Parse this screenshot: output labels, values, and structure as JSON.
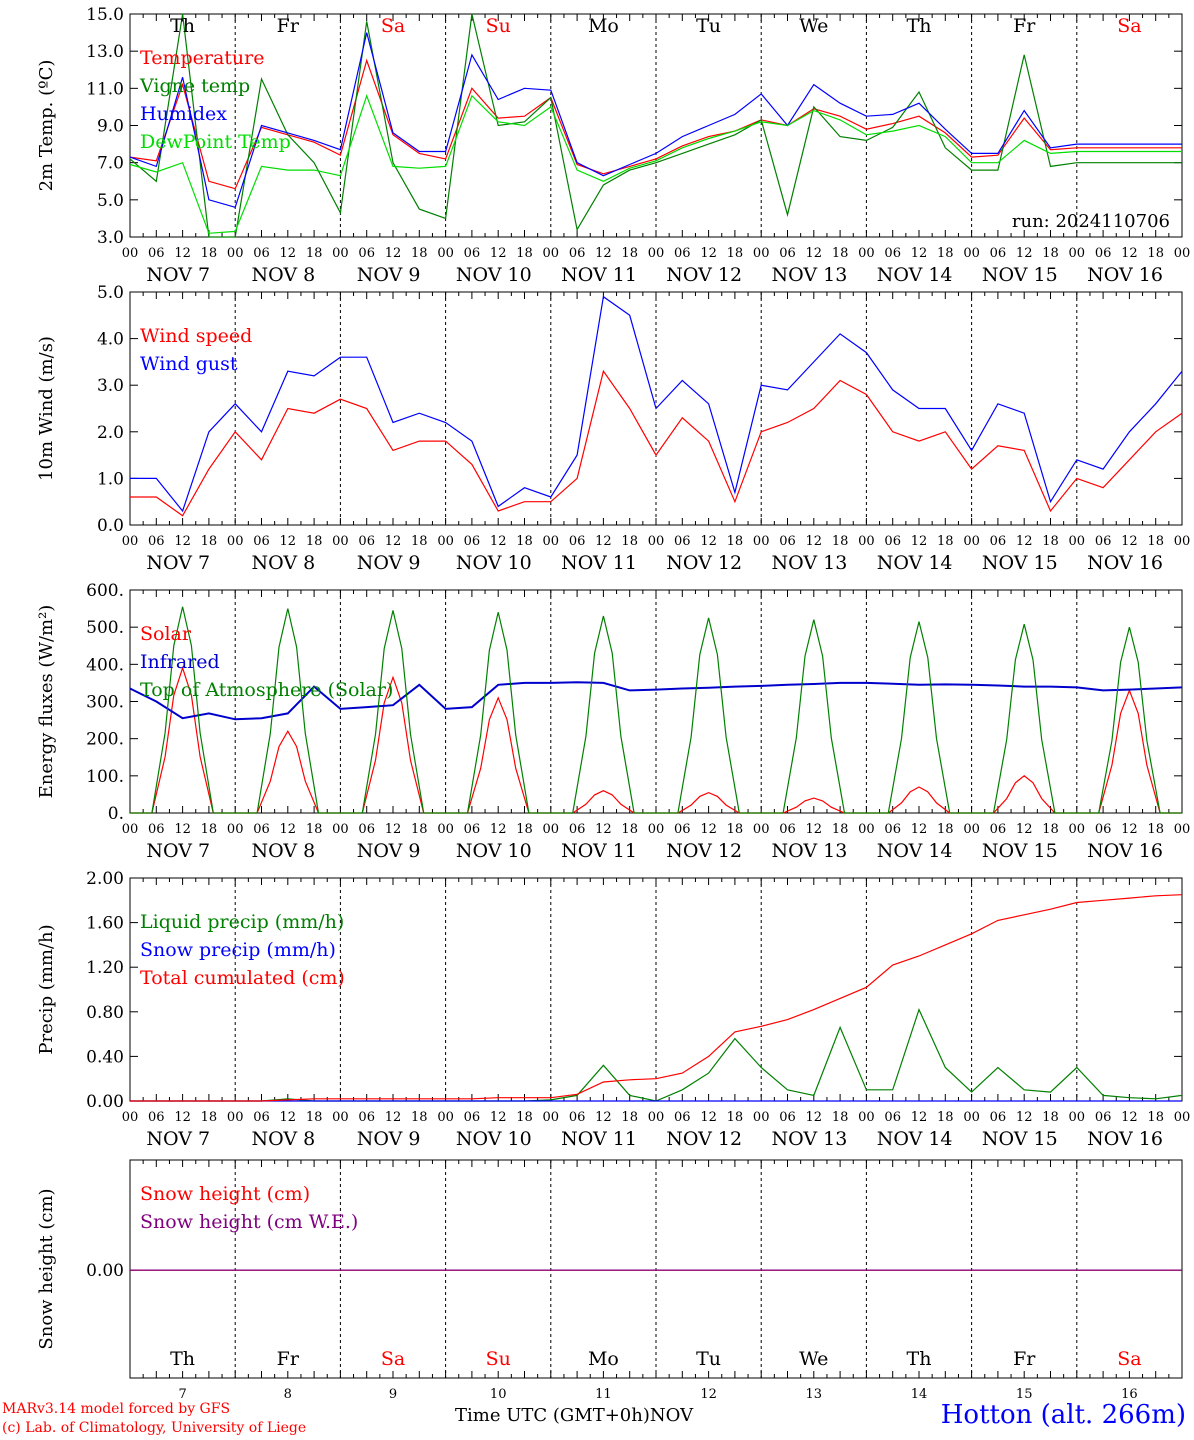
{
  "chart_data": [
    {
      "type": "line",
      "ylabel": "2m Temp. (ºC)",
      "ylim": [
        3.0,
        15.0
      ],
      "yticks": [
        "3.0",
        "5.0",
        "7.0",
        "9.0",
        "11.0",
        "13.0",
        "15.0"
      ],
      "weekday_labels": [
        {
          "text": "Th",
          "weekend": false
        },
        {
          "text": "Fr",
          "weekend": false
        },
        {
          "text": "Sa",
          "weekend": true
        },
        {
          "text": "Su",
          "weekend": true
        },
        {
          "text": "Mo",
          "weekend": false
        },
        {
          "text": "Tu",
          "weekend": false
        },
        {
          "text": "We",
          "weekend": false
        },
        {
          "text": "Th",
          "weekend": false
        },
        {
          "text": "Fr",
          "weekend": false
        },
        {
          "text": "Sa",
          "weekend": true
        }
      ],
      "legend": [
        "Temperature",
        "Vigne temp",
        "Humidex",
        "DewPoint Temp"
      ],
      "annotation": "run: 2024110706",
      "x_hours": [
        0,
        6,
        12,
        18,
        24,
        30,
        36,
        42,
        48,
        54,
        60,
        66,
        72,
        78,
        84,
        90,
        96,
        102,
        108,
        114,
        120,
        126,
        132,
        138,
        144,
        150,
        156,
        162,
        168,
        174,
        180,
        186,
        192,
        198,
        204,
        210,
        216,
        222,
        228,
        234,
        240
      ],
      "series": [
        {
          "name": "Temperature",
          "color": "#ff0000",
          "values": [
            7.3,
            7.1,
            11.2,
            6.0,
            5.6,
            8.9,
            8.5,
            8.1,
            7.4,
            12.5,
            8.5,
            7.5,
            7.2,
            11.0,
            9.4,
            9.5,
            10.5,
            6.9,
            6.4,
            6.8,
            7.2,
            7.9,
            8.4,
            8.7,
            9.3,
            9.0,
            9.9,
            9.5,
            8.8,
            9.1,
            9.5,
            8.6,
            7.3,
            7.4,
            9.4,
            7.7,
            7.8,
            7.8,
            7.8,
            7.8,
            7.8
          ]
        },
        {
          "name": "Vigne temp",
          "color": "#008000",
          "values": [
            7.2,
            6.0,
            15.0,
            3.0,
            3.0,
            11.5,
            8.5,
            7.0,
            4.3,
            14.6,
            7.0,
            4.5,
            4.0,
            15.0,
            9.0,
            9.2,
            10.5,
            3.4,
            5.8,
            6.6,
            7.0,
            7.5,
            8.0,
            8.5,
            9.3,
            4.2,
            10.0,
            8.4,
            8.2,
            8.9,
            10.8,
            7.8,
            6.6,
            6.6,
            12.8,
            6.8,
            7.0,
            7.0,
            7.0,
            7.0,
            7.0
          ]
        },
        {
          "name": "Humidex",
          "color": "#0000ff",
          "values": [
            7.3,
            6.8,
            11.6,
            5.0,
            4.6,
            9.0,
            8.6,
            8.2,
            7.7,
            14.0,
            8.6,
            7.6,
            7.6,
            12.8,
            10.4,
            11.0,
            10.9,
            7.0,
            6.3,
            6.9,
            7.5,
            8.4,
            9.0,
            9.6,
            10.7,
            9.0,
            11.2,
            10.2,
            9.5,
            9.6,
            10.2,
            8.8,
            7.5,
            7.5,
            9.8,
            7.8,
            8.0,
            8.0,
            8.0,
            8.0,
            8.0
          ]
        },
        {
          "name": "DewPoint Temp",
          "color": "#00dd00",
          "values": [
            6.9,
            6.5,
            7.0,
            3.2,
            3.3,
            6.8,
            6.6,
            6.6,
            6.3,
            10.6,
            6.8,
            6.7,
            6.8,
            10.6,
            9.2,
            9.0,
            10.0,
            6.6,
            6.0,
            6.7,
            7.1,
            7.8,
            8.3,
            8.7,
            9.2,
            9.0,
            9.8,
            9.3,
            8.5,
            8.7,
            9.0,
            8.4,
            7.0,
            7.0,
            8.2,
            7.5,
            7.6,
            7.6,
            7.6,
            7.6,
            7.6
          ]
        }
      ]
    },
    {
      "type": "line",
      "ylabel": "10m Wind (m/s)",
      "ylim": [
        0.0,
        5.0
      ],
      "yticks": [
        "0.0",
        "1.0",
        "2.0",
        "3.0",
        "4.0",
        "5.0"
      ],
      "legend": [
        "Wind speed",
        "Wind gust"
      ],
      "x_hours": [
        0,
        6,
        12,
        18,
        24,
        30,
        36,
        42,
        48,
        54,
        60,
        66,
        72,
        78,
        84,
        90,
        96,
        102,
        108,
        114,
        120,
        126,
        132,
        138,
        144,
        150,
        156,
        162,
        168,
        174,
        180,
        186,
        192,
        198,
        204,
        210,
        216,
        222,
        228,
        234,
        240
      ],
      "series": [
        {
          "name": "Wind speed",
          "color": "#ff0000",
          "values": [
            0.6,
            0.6,
            0.2,
            1.2,
            2.0,
            1.4,
            2.5,
            2.4,
            2.7,
            2.5,
            1.6,
            1.8,
            1.8,
            1.3,
            0.3,
            0.5,
            0.5,
            1.0,
            3.3,
            2.5,
            1.5,
            2.3,
            1.8,
            0.5,
            2.0,
            2.2,
            2.5,
            3.1,
            2.8,
            2.0,
            1.8,
            2.0,
            1.2,
            1.7,
            1.6,
            0.3,
            1.0,
            0.8,
            1.4,
            2.0,
            2.4
          ]
        },
        {
          "name": "Wind gust",
          "color": "#0000ff",
          "values": [
            1.0,
            1.0,
            0.3,
            2.0,
            2.6,
            2.0,
            3.3,
            3.2,
            3.6,
            3.6,
            2.2,
            2.4,
            2.2,
            1.8,
            0.4,
            0.8,
            0.6,
            1.5,
            4.9,
            4.5,
            2.5,
            3.1,
            2.6,
            0.7,
            3.0,
            2.9,
            3.5,
            4.1,
            3.7,
            2.9,
            2.5,
            2.5,
            1.6,
            2.6,
            2.4,
            0.5,
            1.4,
            1.2,
            2.0,
            2.6,
            3.3
          ]
        }
      ]
    },
    {
      "type": "line",
      "ylabel": "Energy fluxes (W/m²)",
      "ylim": [
        0,
        600
      ],
      "yticks": [
        "0.",
        "100.",
        "200.",
        "300.",
        "400.",
        "500.",
        "600."
      ],
      "legend": [
        "Solar",
        "Infrared",
        "Top of Atmosphere (Solar)"
      ],
      "series": [
        {
          "name": "Solar",
          "color": "#ff0000",
          "peaks": [
            [
              12,
              390
            ],
            [
              36,
              220
            ],
            [
              60,
              365
            ],
            [
              84,
              310
            ],
            [
              108,
              60
            ],
            [
              132,
              55
            ],
            [
              156,
              40
            ],
            [
              180,
              70
            ],
            [
              204,
              100
            ],
            [
              228,
              330
            ]
          ]
        },
        {
          "name": "Infrared",
          "color": "#0000cc",
          "x_hours": [
            0,
            6,
            12,
            18,
            24,
            30,
            36,
            42,
            48,
            54,
            60,
            66,
            72,
            78,
            84,
            90,
            96,
            102,
            108,
            114,
            120,
            126,
            132,
            138,
            144,
            150,
            156,
            162,
            168,
            174,
            180,
            186,
            192,
            198,
            204,
            210,
            216,
            222,
            228,
            234,
            240
          ],
          "values": [
            335,
            300,
            255,
            268,
            252,
            255,
            268,
            340,
            280,
            285,
            290,
            345,
            280,
            285,
            345,
            350,
            350,
            352,
            350,
            330,
            332,
            335,
            337,
            340,
            342,
            345,
            347,
            350,
            350,
            348,
            345,
            346,
            345,
            343,
            340,
            340,
            338,
            330,
            332,
            335,
            338
          ]
        },
        {
          "name": "Top of Atmosphere (Solar)",
          "color": "#008000",
          "peaks": [
            [
              12,
              555
            ],
            [
              36,
              550
            ],
            [
              60,
              545
            ],
            [
              84,
              540
            ],
            [
              108,
              530
            ],
            [
              132,
              525
            ],
            [
              156,
              520
            ],
            [
              180,
              515
            ],
            [
              204,
              508
            ],
            [
              228,
              500
            ]
          ]
        }
      ]
    },
    {
      "type": "line",
      "ylabel": "Precip (mm/h)",
      "ylim": [
        0.0,
        2.0
      ],
      "yticks": [
        "0.00",
        "0.40",
        "0.80",
        "1.20",
        "1.60",
        "2.00"
      ],
      "legend": [
        "Liquid precip (mm/h)",
        "Snow precip (mm/h)",
        "Total cumulated (cm)"
      ],
      "series": [
        {
          "name": "Liquid precip (mm/h)",
          "color": "#008000",
          "x_hours": [
            0,
            6,
            12,
            18,
            24,
            30,
            36,
            42,
            48,
            54,
            60,
            66,
            72,
            78,
            84,
            90,
            96,
            102,
            108,
            114,
            120,
            126,
            132,
            138,
            144,
            150,
            156,
            162,
            168,
            174,
            180,
            186,
            192,
            198,
            204,
            210,
            216,
            222,
            228,
            234,
            240
          ],
          "values": [
            0.0,
            0.0,
            0.0,
            0.0,
            0.0,
            0.0,
            0.02,
            0.0,
            0.0,
            0.0,
            0.0,
            0.0,
            0.0,
            0.0,
            0.0,
            0.0,
            0.01,
            0.05,
            0.32,
            0.05,
            0.0,
            0.1,
            0.25,
            0.56,
            0.3,
            0.1,
            0.05,
            0.66,
            0.1,
            0.1,
            0.82,
            0.3,
            0.08,
            0.3,
            0.1,
            0.08,
            0.3,
            0.05,
            0.03,
            0.02,
            0.05
          ]
        },
        {
          "name": "Snow precip (mm/h)",
          "color": "#0000ff",
          "x_hours": [
            0,
            240
          ],
          "values": [
            0.0,
            0.0
          ]
        },
        {
          "name": "Total cumulated (cm)",
          "color": "#ff0000",
          "x_hours": [
            0,
            6,
            12,
            18,
            24,
            30,
            36,
            42,
            48,
            54,
            60,
            66,
            72,
            78,
            84,
            90,
            96,
            102,
            108,
            114,
            120,
            126,
            132,
            138,
            144,
            150,
            156,
            162,
            168,
            174,
            180,
            186,
            192,
            198,
            204,
            210,
            216,
            222,
            228,
            234,
            240
          ],
          "values": [
            0.0,
            0.0,
            0.0,
            0.0,
            0.0,
            0.0,
            0.01,
            0.02,
            0.02,
            0.02,
            0.02,
            0.02,
            0.02,
            0.02,
            0.03,
            0.03,
            0.03,
            0.06,
            0.17,
            0.19,
            0.2,
            0.25,
            0.4,
            0.62,
            0.67,
            0.73,
            0.82,
            0.92,
            1.02,
            1.22,
            1.3,
            1.4,
            1.5,
            1.62,
            1.67,
            1.72,
            1.78,
            1.8,
            1.82,
            1.84,
            1.85
          ]
        }
      ]
    },
    {
      "type": "line",
      "ylabel": "Snow height (cm)",
      "yticks": [
        "0.00"
      ],
      "legend": [
        "Snow height (cm)",
        "Snow height (cm W.E.)"
      ],
      "series": [
        {
          "name": "Snow height (cm)",
          "color": "#ff0000",
          "x_hours": [
            0,
            240
          ],
          "values": [
            0.0,
            0.0
          ]
        },
        {
          "name": "Snow height (cm W.E.)",
          "color": "#800080",
          "x_hours": [
            0,
            240
          ],
          "values": [
            0.0,
            0.0
          ]
        }
      ]
    }
  ],
  "x_axis": {
    "hour_ticks": [
      "00",
      "06",
      "12",
      "18"
    ],
    "end_tick": "00",
    "date_labels": [
      "NOV  7",
      "NOV  8",
      "NOV  9",
      "NOV 10",
      "NOV 11",
      "NOV 12",
      "NOV 13",
      "NOV 14",
      "NOV 15",
      "NOV 16"
    ],
    "day_numbers": [
      "7",
      "8",
      "9",
      "10",
      "11",
      "12",
      "13",
      "14",
      "15",
      "16"
    ],
    "title": "Time UTC (GMT+0h)",
    "month": "NOV"
  },
  "footer": {
    "credit_line1": "MARv3.14 model forced by GFS",
    "credit_line2": "(c) Lab. of Climatology, University of Liege",
    "station": "Hotton (alt. 266m)"
  },
  "colors": {
    "weekend": "#ff0000",
    "weekday": "#000000"
  }
}
